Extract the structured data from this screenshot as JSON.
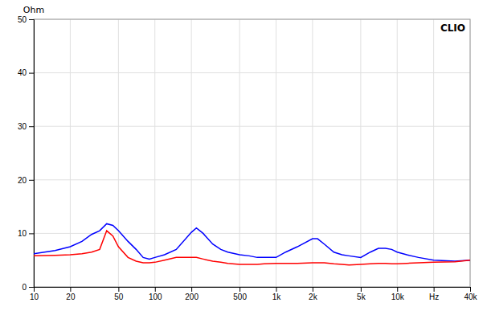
{
  "chart_data": {
    "type": "line",
    "title": "CLIO",
    "y_label": "Ohm",
    "x": [
      10,
      15,
      20,
      25,
      30,
      35,
      40,
      45,
      50,
      60,
      70,
      80,
      90,
      100,
      120,
      150,
      200,
      220,
      250,
      300,
      350,
      400,
      500,
      600,
      700,
      800,
      1000,
      1200,
      1500,
      2000,
      2200,
      2500,
      3000,
      3500,
      4000,
      5000,
      6000,
      7000,
      8000,
      9000,
      10000,
      12000,
      15000,
      20000,
      30000,
      40000
    ],
    "series": [
      {
        "color": "#0000ff",
        "values": [
          6.2,
          6.8,
          7.5,
          8.5,
          9.8,
          10.5,
          11.8,
          11.5,
          10.5,
          8.5,
          7.0,
          5.5,
          5.2,
          5.5,
          6.0,
          7.0,
          10.2,
          11.0,
          10.0,
          8.0,
          7.0,
          6.5,
          6.0,
          5.8,
          5.5,
          5.5,
          5.5,
          6.5,
          7.5,
          9.0,
          9.0,
          8.0,
          6.5,
          6.0,
          5.8,
          5.5,
          6.5,
          7.2,
          7.2,
          7.0,
          6.5,
          6.0,
          5.5,
          5.0,
          4.8,
          5.0
        ]
      },
      {
        "color": "#ff0000",
        "values": [
          5.8,
          5.9,
          6.0,
          6.2,
          6.5,
          7.0,
          10.5,
          9.5,
          7.5,
          5.5,
          4.8,
          4.5,
          4.5,
          4.6,
          5.0,
          5.5,
          5.5,
          5.5,
          5.2,
          4.8,
          4.6,
          4.4,
          4.2,
          4.2,
          4.2,
          4.3,
          4.4,
          4.4,
          4.4,
          4.5,
          4.5,
          4.5,
          4.3,
          4.2,
          4.1,
          4.2,
          4.3,
          4.4,
          4.4,
          4.3,
          4.3,
          4.4,
          4.5,
          4.6,
          4.7,
          5.0
        ]
      }
    ],
    "log": "x",
    "xlim": [
      10,
      40000
    ],
    "xticks": [
      10,
      20,
      50,
      100,
      200,
      500,
      {
        "value": 1000,
        "label": "1k"
      },
      {
        "value": 2000,
        "label": "2k"
      },
      {
        "value": 5000,
        "label": "5k"
      },
      {
        "value": 10000,
        "label": "10k"
      },
      {
        "value": 20000,
        "label": "Hz"
      },
      {
        "value": 40000,
        "label": "40k"
      }
    ],
    "ylim": [
      0,
      50
    ],
    "yticks": [
      0,
      10,
      20,
      30,
      40,
      50
    ],
    "grid": true
  }
}
